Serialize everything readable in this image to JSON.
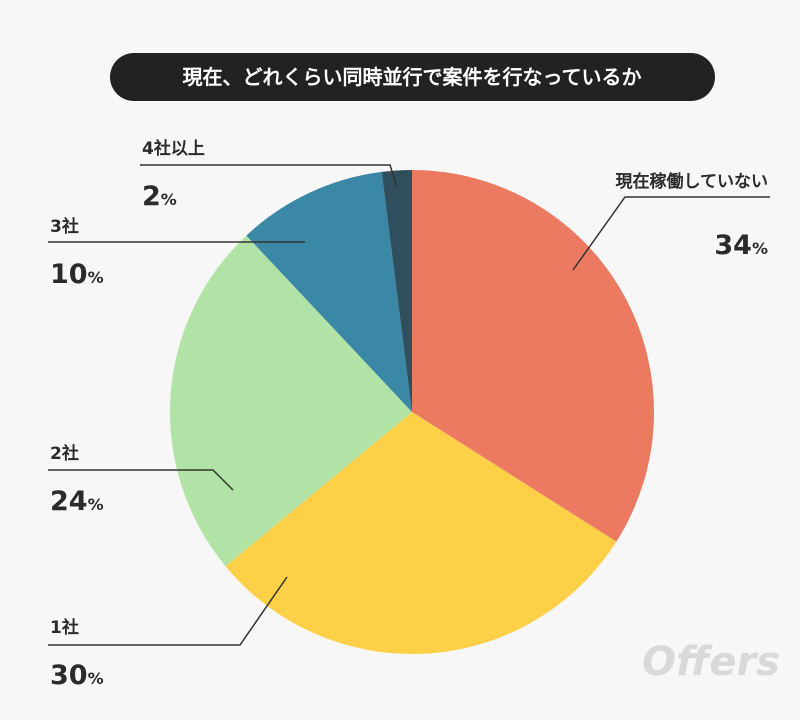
{
  "chart_data": {
    "type": "pie",
    "title": "現在、どれくらい同時並行で案件を行なっているか",
    "unit": "%",
    "start_angle_deg": 0,
    "direction": "clockwise",
    "slices": [
      {
        "label": "現在稼働していない",
        "value": 34,
        "color": "#ec7a61"
      },
      {
        "label": "1社",
        "value": 30,
        "color": "#fdd048"
      },
      {
        "label": "2社",
        "value": 24,
        "color": "#b0e3a5"
      },
      {
        "label": "3社",
        "value": 10,
        "color": "#3b87a6"
      },
      {
        "label": "4社以上",
        "value": 2,
        "color": "#2f4f5e"
      }
    ]
  },
  "brand": {
    "logo": "Offers"
  },
  "colors": {
    "title_bg": "#222222",
    "background": "#f7f7f7",
    "leader": "#333333"
  }
}
